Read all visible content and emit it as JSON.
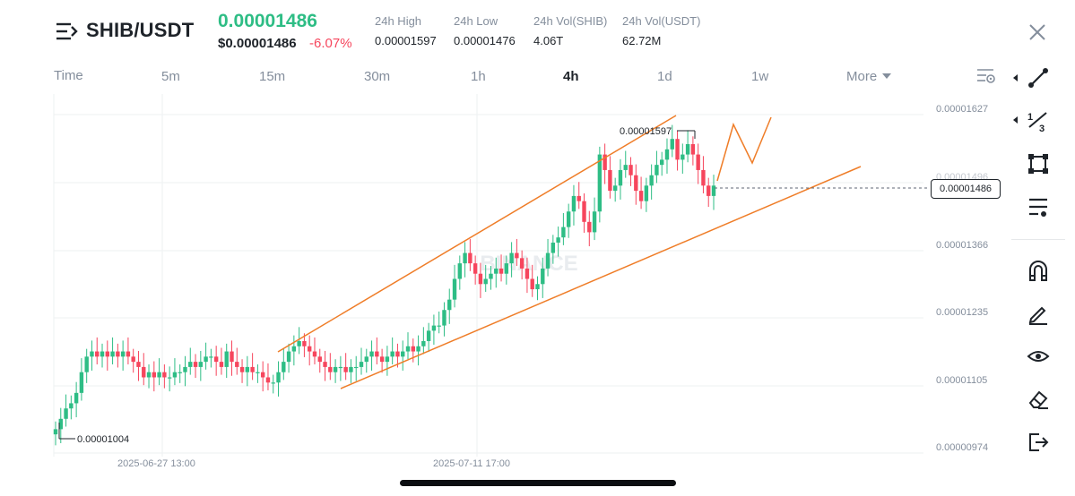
{
  "header": {
    "pair": "SHIB/USDT",
    "last_price": "0.00001486",
    "usd_price": "$0.00001486",
    "change": "-6.07%",
    "stats": [
      {
        "label": "24h High",
        "value": "0.00001597"
      },
      {
        "label": "24h Low",
        "value": "0.00001476"
      },
      {
        "label": "24h Vol(SHIB)",
        "value": "4.06T"
      },
      {
        "label": "24h Vol(USDT)",
        "value": "62.72M"
      }
    ]
  },
  "tabs": [
    {
      "label": "Time",
      "active": false
    },
    {
      "label": "5m",
      "active": false
    },
    {
      "label": "15m",
      "active": false
    },
    {
      "label": "30m",
      "active": false
    },
    {
      "label": "1h",
      "active": false
    },
    {
      "label": "4h",
      "active": true
    },
    {
      "label": "1d",
      "active": false
    },
    {
      "label": "1w",
      "active": false
    },
    {
      "label": "More",
      "active": false
    }
  ],
  "toolbar": {
    "icons": [
      "trend-line-icon",
      "fibonacci-icon",
      "rectangle-icon",
      "indicator-settings-icon",
      "magnet-icon",
      "pencil-icon",
      "eye-icon",
      "eraser-icon",
      "exit-icon"
    ]
  },
  "chart_data": {
    "type": "candlestick",
    "interval": "4h",
    "watermark": "BINANCE",
    "y_ticks": [
      "0.00001627",
      "0.00001496",
      "0.00001366",
      "0.00001235",
      "0.00001105",
      "0.00000974"
    ],
    "x_ticks": [
      "2025-06-27 13:00",
      "2025-07-11 17:00"
    ],
    "current_price_label": "0.00001486",
    "high_marker": "0.00001597",
    "low_marker": "0.00001004",
    "close_series": [
      1.02e-05,
      1.04e-05,
      1.06e-05,
      1.07e-05,
      1.09e-05,
      1.13e-05,
      1.16e-05,
      1.17e-05,
      1.16e-05,
      1.17e-05,
      1.16e-05,
      1.17e-05,
      1.16e-05,
      1.17e-05,
      1.16e-05,
      1.15e-05,
      1.14e-05,
      1.12e-05,
      1.13e-05,
      1.12e-05,
      1.13e-05,
      1.12e-05,
      1.12e-05,
      1.13e-05,
      1.13e-05,
      1.14e-05,
      1.15e-05,
      1.14e-05,
      1.15e-05,
      1.16e-05,
      1.16e-05,
      1.15e-05,
      1.14e-05,
      1.17e-05,
      1.15e-05,
      1.14e-05,
      1.13e-05,
      1.14e-05,
      1.13e-05,
      1.13e-05,
      1.12e-05,
      1.11e-05,
      1.11e-05,
      1.13e-05,
      1.15e-05,
      1.17e-05,
      1.18e-05,
      1.19e-05,
      1.18e-05,
      1.17e-05,
      1.16e-05,
      1.15e-05,
      1.14e-05,
      1.13e-05,
      1.14e-05,
      1.14e-05,
      1.13e-05,
      1.14e-05,
      1.14e-05,
      1.15e-05,
      1.16e-05,
      1.17e-05,
      1.16e-05,
      1.15e-05,
      1.16e-05,
      1.17e-05,
      1.16e-05,
      1.17e-05,
      1.18e-05,
      1.17e-05,
      1.18e-05,
      1.19e-05,
      1.21e-05,
      1.22e-05,
      1.22e-05,
      1.25e-05,
      1.27e-05,
      1.31e-05,
      1.34e-05,
      1.36e-05,
      1.34e-05,
      1.32e-05,
      1.3e-05,
      1.31e-05,
      1.32e-05,
      1.33e-05,
      1.32e-05,
      1.34e-05,
      1.36e-05,
      1.35e-05,
      1.33e-05,
      1.31e-05,
      1.29e-05,
      1.3e-05,
      1.33e-05,
      1.36e-05,
      1.38e-05,
      1.39e-05,
      1.41e-05,
      1.44e-05,
      1.47e-05,
      1.46e-05,
      1.42e-05,
      1.4e-05,
      1.44e-05,
      1.55e-05,
      1.52e-05,
      1.48e-05,
      1.49e-05,
      1.52e-05,
      1.53e-05,
      1.51e-05,
      1.48e-05,
      1.46e-05,
      1.49e-05,
      1.51e-05,
      1.53e-05,
      1.54e-05,
      1.56e-05,
      1.58e-05,
      1.54e-05,
      1.55e-05,
      1.57e-05,
      1.55e-05,
      1.52e-05,
      1.49e-05,
      1.47e-05,
      1.49e-05
    ]
  }
}
